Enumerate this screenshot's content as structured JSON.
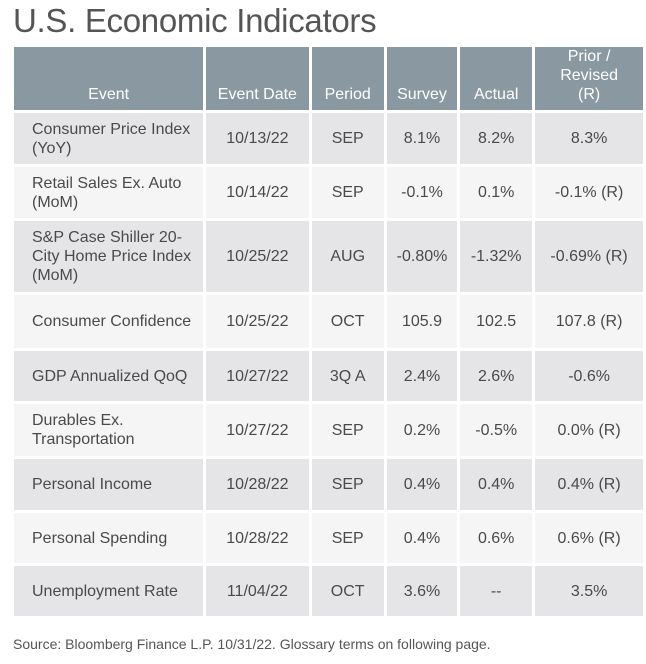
{
  "title": "U.S. Economic Indicators",
  "columns": [
    "Event",
    "Event Date",
    "Period",
    "Survey",
    "Actual",
    "Prior / Revised (R)"
  ],
  "rows": [
    {
      "event": "Consumer Price Index (YoY)",
      "date": "10/13/22",
      "period": "SEP",
      "survey": "8.1%",
      "actual": "8.2%",
      "prior": "8.3%"
    },
    {
      "event": "Retail Sales Ex. Auto (MoM)",
      "date": "10/14/22",
      "period": "SEP",
      "survey": "-0.1%",
      "actual": "0.1%",
      "prior": "-0.1% (R)"
    },
    {
      "event": "S&P Case Shiller 20-City Home Price Index (MoM)",
      "date": "10/25/22",
      "period": "AUG",
      "survey": "-0.80%",
      "actual": "-1.32%",
      "prior": "-0.69% (R)"
    },
    {
      "event": "Consumer Confidence",
      "date": "10/25/22",
      "period": "OCT",
      "survey": "105.9",
      "actual": "102.5",
      "prior": "107.8 (R)"
    },
    {
      "event": "GDP Annualized QoQ",
      "date": "10/27/22",
      "period": "3Q A",
      "survey": "2.4%",
      "actual": "2.6%",
      "prior": "-0.6%"
    },
    {
      "event": "Durables Ex. Transportation",
      "date": "10/27/22",
      "period": "SEP",
      "survey": "0.2%",
      "actual": "-0.5%",
      "prior": "0.0% (R)"
    },
    {
      "event": "Personal Income",
      "date": "10/28/22",
      "period": "SEP",
      "survey": "0.4%",
      "actual": "0.4%",
      "prior": "0.4% (R)"
    },
    {
      "event": "Personal Spending",
      "date": "10/28/22",
      "period": "SEP",
      "survey": "0.4%",
      "actual": "0.6%",
      "prior": "0.6% (R)"
    },
    {
      "event": "Unemployment Rate",
      "date": "11/04/22",
      "period": "OCT",
      "survey": "3.6%",
      "actual": "--",
      "prior": "3.5%"
    }
  ],
  "source": "Source: Bloomberg Finance L.P. 10/31/22. Glossary terms on following page."
}
